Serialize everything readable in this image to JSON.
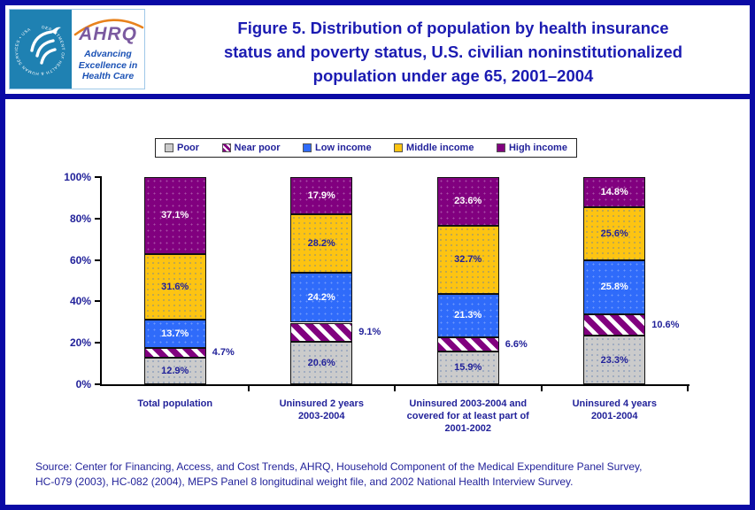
{
  "header": {
    "logo": {
      "org_abbr": "AHRQ",
      "seal_text": "DEPARTMENT OF HEALTH & HUMAN SERVICES • USA",
      "tagline_line1": "Advancing",
      "tagline_line2": "Excellence in",
      "tagline_line3": "Health Care"
    },
    "title": "Figure 5. Distribution of population by health insurance status and poverty status, U.S. civilian noninstitutionalized population under age 65, 2001–2004",
    "title_lines": [
      "Figure 5. Distribution of population by health insurance",
      "status and poverty status, U.S. civilian noninstitutionalized",
      "population under age 65, 2001–2004"
    ]
  },
  "chart_data": {
    "type": "bar",
    "stacked": true,
    "categories": [
      "Total population",
      "Uninsured 2 years 2003-2004",
      "Uninsured 2003-2004 and covered for at least part of 2001-2002",
      "Uninsured 4 years 2001-2004"
    ],
    "category_label_lines": [
      [
        "Total population"
      ],
      [
        "Uninsured 2 years",
        "2003-2004"
      ],
      [
        "Uninsured 2003-2004 and",
        "covered for at least part of",
        "2001-2002"
      ],
      [
        "Uninsured 4 years",
        "2001-2004"
      ]
    ],
    "series": [
      {
        "name": "Poor",
        "values": [
          12.9,
          20.6,
          15.9,
          23.3
        ],
        "color": "#cbcbcb",
        "pattern": "dots-dark",
        "label_color": "#22229a",
        "label_placement": "inside"
      },
      {
        "name": "Near poor",
        "values": [
          4.7,
          9.1,
          6.6,
          10.6
        ],
        "color": "#81007f",
        "pattern": "stripes",
        "label_color": "#22229a",
        "label_placement": "outside-right"
      },
      {
        "name": "Low income",
        "values": [
          13.7,
          24.2,
          21.3,
          25.8
        ],
        "color": "#2f6bfa",
        "pattern": "dots-light",
        "label_color": "#ffffff",
        "label_placement": "inside"
      },
      {
        "name": "Middle income",
        "values": [
          31.6,
          28.2,
          32.7,
          25.6
        ],
        "color": "#fdc412",
        "pattern": "dots-dark",
        "label_color": "#22229a",
        "label_placement": "inside"
      },
      {
        "name": "High income",
        "values": [
          37.1,
          17.9,
          23.6,
          14.8
        ],
        "color": "#81007f",
        "pattern": "dots-light",
        "label_color": "#ffffff",
        "label_placement": "inside"
      }
    ],
    "y_ticks": [
      "0%",
      "20%",
      "40%",
      "60%",
      "80%",
      "100%"
    ],
    "ylim": [
      0,
      100
    ],
    "value_suffix": "%",
    "legend_position": "top",
    "grid": false,
    "title": "Figure 5. Distribution of population by health insurance status and poverty status, U.S. civilian noninstitutionalized population under age 65, 2001–2004",
    "xlabel": "",
    "ylabel": ""
  },
  "source_note": {
    "lines": [
      "Source: Center for Financing, Access, and Cost Trends, AHRQ, Household Component of the Medical Expenditure Panel Survey,",
      "HC-079 (2003), HC-082 (2004), MEPS Panel 8 longitudinal weight file, and 2002 National Health Interview Survey."
    ]
  },
  "colors": {
    "frame_border": "#0a0aa5",
    "title_text": "#1b1bb2",
    "chart_text": "#22229a",
    "axis": "#000000",
    "logo_teal": "#1f81b2",
    "ahrq_purple": "#7b5aa0",
    "ahrq_arc_orange": "#e8821c"
  }
}
